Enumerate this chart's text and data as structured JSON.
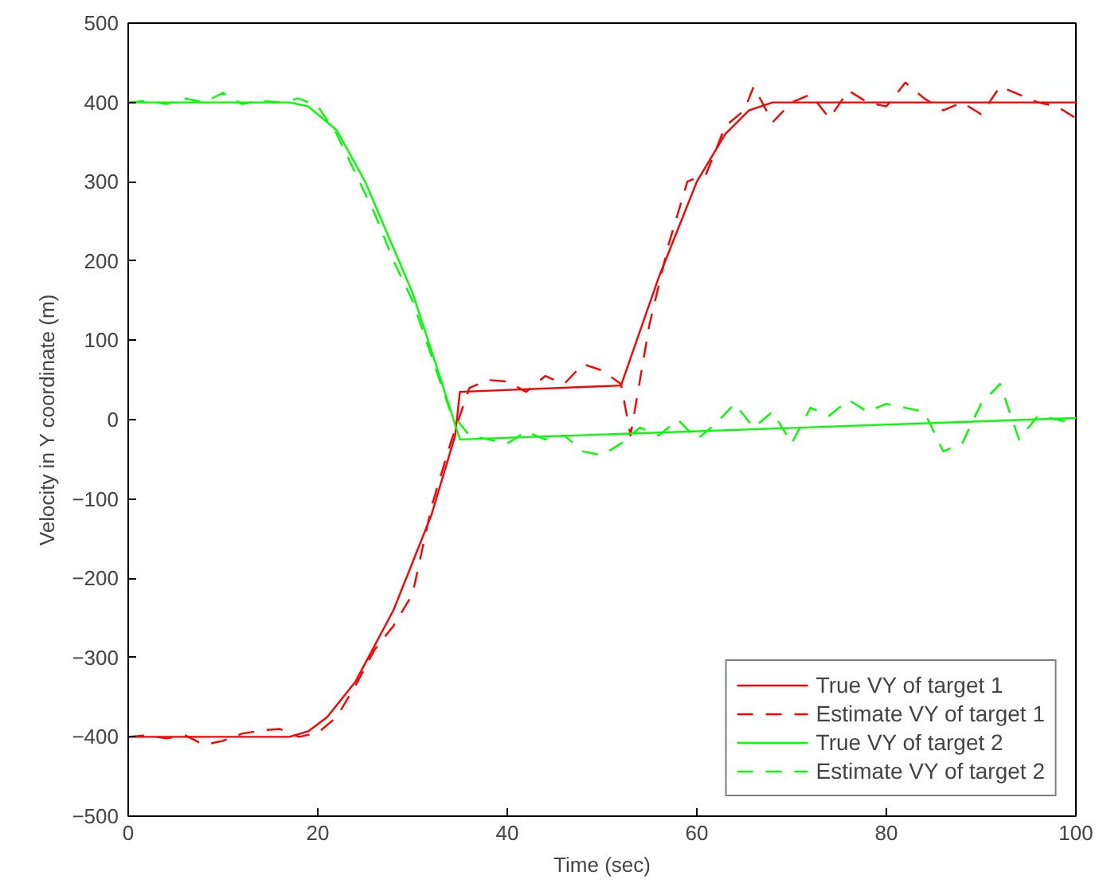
{
  "chart_data": {
    "type": "line",
    "xlabel": "Time (sec)",
    "ylabel": "Velocity in Y coordinate (m)",
    "xlim": [
      0,
      100
    ],
    "ylim": [
      -500,
      500
    ],
    "xticks": [
      0,
      20,
      40,
      60,
      80,
      100
    ],
    "yticks": [
      -500,
      -400,
      -300,
      -200,
      -100,
      0,
      100,
      200,
      300,
      400,
      500
    ],
    "grid": false,
    "legend": "bottom right",
    "series": [
      {
        "name": "True VY of target 1",
        "color": "#ff0000",
        "line_style": "solid",
        "x": [
          0,
          17,
          19,
          21,
          24,
          28,
          32,
          34.5,
          35,
          52,
          56,
          60,
          63,
          65.5,
          68,
          100
        ],
        "values": [
          -400,
          -400,
          -393,
          -375,
          -330,
          -240,
          -120,
          -20,
          35,
          43,
          180,
          300,
          360,
          390,
          400,
          400
        ]
      },
      {
        "name": "Estimate VY of target 1",
        "color": "#ff0000",
        "line_style": "dashed",
        "x": [
          0,
          2,
          4,
          6,
          8,
          10,
          12,
          14,
          16,
          18,
          20,
          22,
          24,
          26,
          28,
          30,
          32,
          34,
          36,
          38,
          40,
          42,
          44,
          46,
          48,
          50,
          52,
          53,
          55,
          57,
          59,
          61,
          63,
          65,
          66,
          68,
          70,
          72,
          74,
          76,
          78,
          80,
          82,
          84,
          86,
          88,
          90,
          92,
          94,
          96,
          98,
          100
        ],
        "values": [
          -400,
          -398,
          -402,
          -398,
          -410,
          -405,
          -396,
          -392,
          -390,
          -400,
          -395,
          -375,
          -335,
          -290,
          -260,
          -220,
          -110,
          -30,
          40,
          50,
          48,
          35,
          55,
          45,
          70,
          62,
          45,
          -20,
          120,
          220,
          300,
          310,
          370,
          390,
          420,
          375,
          400,
          410,
          380,
          415,
          400,
          395,
          425,
          405,
          390,
          400,
          385,
          420,
          410,
          400,
          395,
          380
        ]
      },
      {
        "name": "True VY of target 2",
        "color": "#00ff00",
        "line_style": "solid",
        "x": [
          0,
          17,
          19,
          22,
          25,
          30,
          33,
          35,
          100
        ],
        "values": [
          400,
          400,
          395,
          365,
          300,
          160,
          50,
          -25,
          2
        ]
      },
      {
        "name": "Estimate VY of target 2",
        "color": "#00ff00",
        "line_style": "dashed",
        "x": [
          0,
          2,
          4,
          6,
          8,
          10,
          12,
          14,
          16,
          18,
          20,
          22,
          24,
          26,
          28,
          30,
          32,
          34,
          36,
          38,
          40,
          42,
          44,
          46,
          48,
          50,
          52,
          54,
          56,
          58,
          60,
          62,
          64,
          66,
          68,
          70,
          72,
          74,
          76,
          78,
          80,
          82,
          84,
          86,
          88,
          90,
          92,
          94,
          96,
          98,
          100
        ],
        "values": [
          400,
          402,
          398,
          405,
          400,
          412,
          398,
          402,
          400,
          405,
          395,
          360,
          310,
          260,
          200,
          150,
          80,
          10,
          -20,
          -25,
          -30,
          -15,
          -25,
          -20,
          -40,
          -45,
          -30,
          -10,
          -20,
          0,
          -25,
          -5,
          20,
          -10,
          10,
          -30,
          15,
          5,
          25,
          10,
          20,
          15,
          10,
          -40,
          -30,
          20,
          45,
          -25,
          5,
          0,
          -5
        ]
      }
    ]
  }
}
